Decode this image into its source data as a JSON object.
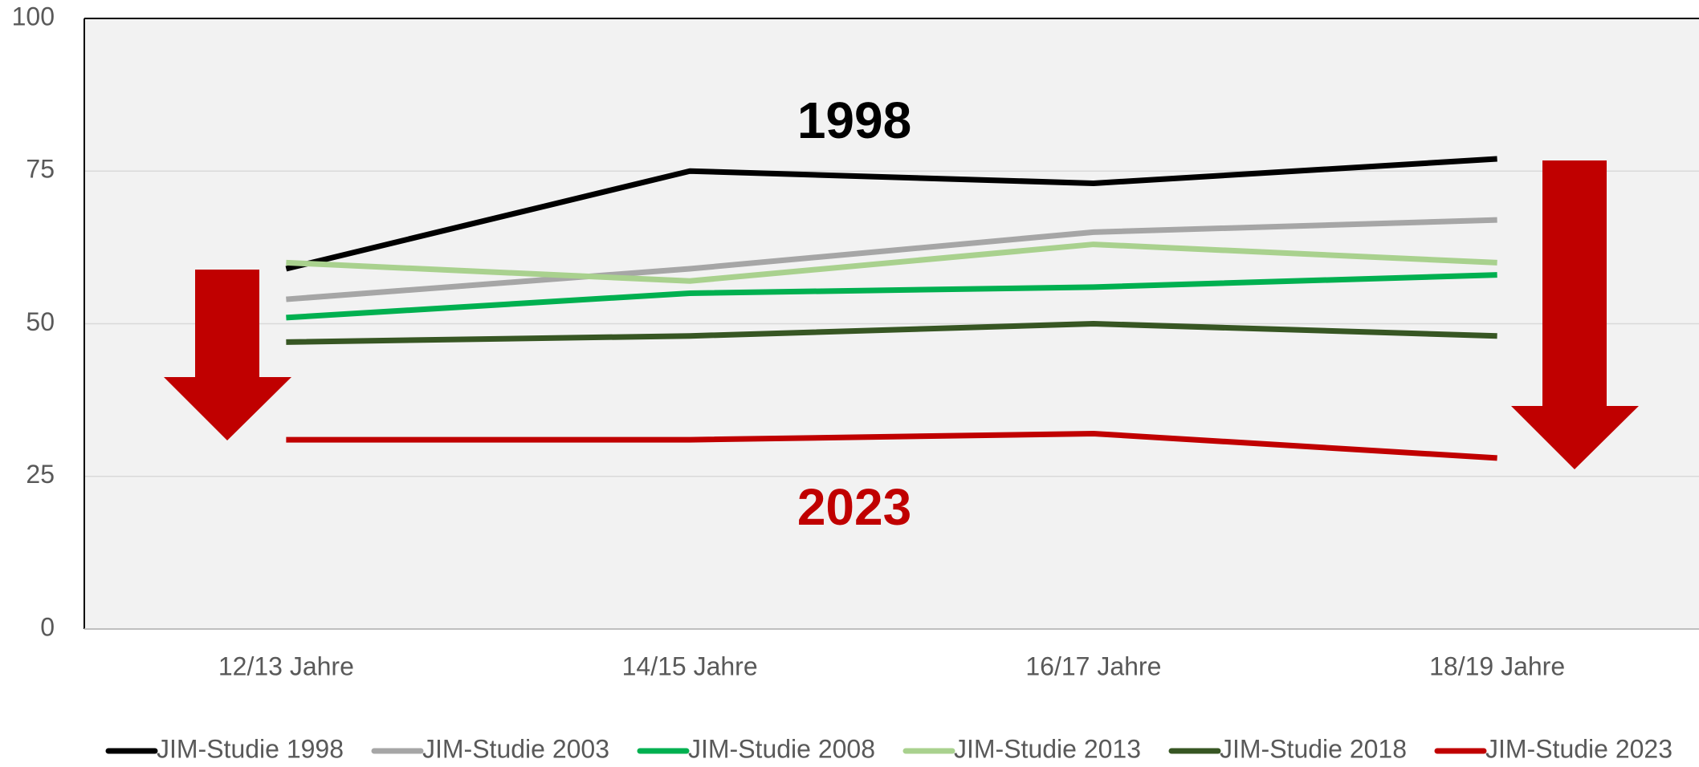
{
  "chart_data": {
    "type": "line",
    "categories": [
      "12/13 Jahre",
      "14/15 Jahre",
      "16/17 Jahre",
      "18/19 Jahre"
    ],
    "series": [
      {
        "name": "JIM-Studie 1998",
        "color": "#000000",
        "values": [
          59,
          75,
          73,
          77
        ]
      },
      {
        "name": "JIM-Studie 2003",
        "color": "#a6a6a6",
        "values": [
          54,
          59,
          65,
          67
        ]
      },
      {
        "name": "JIM-Studie 2008",
        "color": "#00b050",
        "values": [
          51,
          55,
          56,
          58
        ]
      },
      {
        "name": "JIM-Studie 2013",
        "color": "#a9d18e",
        "values": [
          60,
          57,
          63,
          60
        ]
      },
      {
        "name": "JIM-Studie 2018",
        "color": "#375623",
        "values": [
          47,
          48,
          50,
          48
        ]
      },
      {
        "name": "JIM-Studie 2023",
        "color": "#c00000",
        "values": [
          31,
          31,
          32,
          28
        ]
      }
    ],
    "annotations": [
      "1998",
      "2023"
    ],
    "ylim": [
      0,
      100
    ],
    "yticks": [
      0,
      25,
      50,
      75,
      100
    ],
    "grid": true,
    "legend": "bottom"
  }
}
